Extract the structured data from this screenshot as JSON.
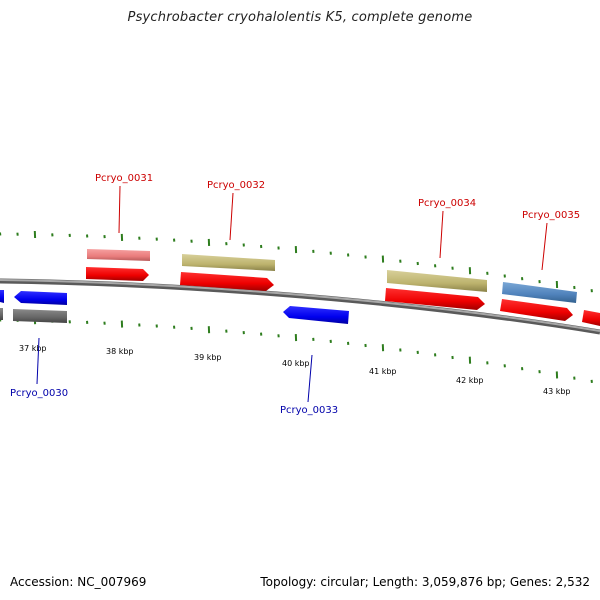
{
  "title": "Psychrobacter cryohalolentis K5, complete genome",
  "footer": {
    "accession": "Accession: NC_007969",
    "summary": "Topology: circular; Length: 3,059,876 bp; Genes: 2,532"
  },
  "colors": {
    "backbone": "#8a8a8a",
    "tick": "#2e7d1e",
    "forward_label": "#cc0000",
    "reverse_label": "#0000aa"
  },
  "scale_labels": [
    "37 kbp",
    "38 kbp",
    "39 kbp",
    "40 kbp",
    "41 kbp",
    "42 kbp",
    "43 kbp"
  ],
  "genes": [
    {
      "label": "Pcryo_0031",
      "strand": "forward"
    },
    {
      "label": "Pcryo_0032",
      "strand": "forward"
    },
    {
      "label": "Pcryo_0034",
      "strand": "forward"
    },
    {
      "label": "Pcryo_0035",
      "strand": "forward"
    },
    {
      "label": "Pcryo_0030",
      "strand": "reverse"
    },
    {
      "label": "Pcryo_0033",
      "strand": "reverse"
    }
  ]
}
